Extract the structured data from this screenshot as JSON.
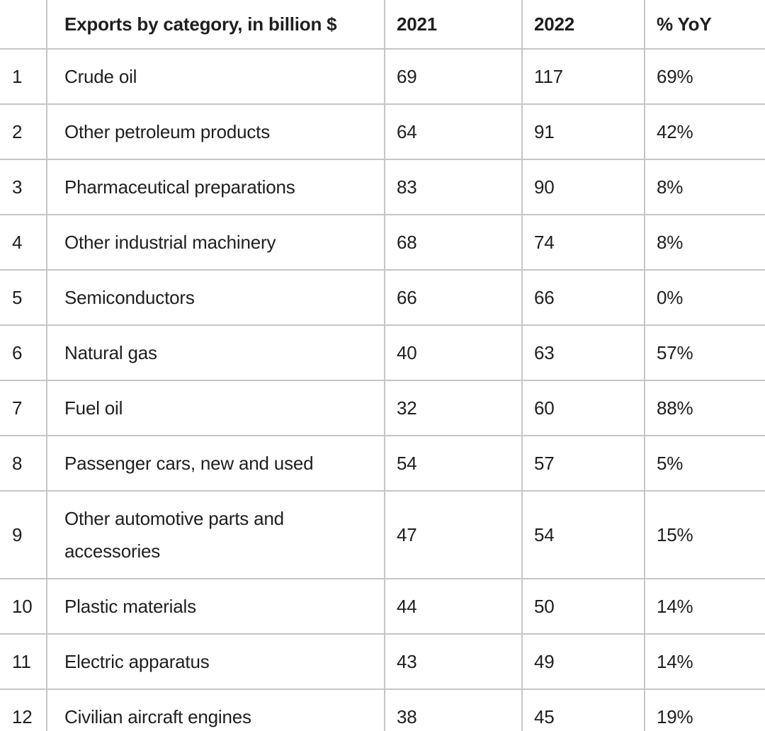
{
  "colors": {
    "background": "#ffffff",
    "text": "#1f1f1f",
    "border": "#c6c6c6"
  },
  "table": {
    "header": {
      "index": "",
      "category": "Exports by category, in billion $",
      "y2021": "2021",
      "y2022": "2022",
      "yoy": "% YoY"
    },
    "rows": [
      {
        "index": "1",
        "category": "Crude oil",
        "y2021": "69",
        "y2022": "117",
        "yoy": "69%"
      },
      {
        "index": "2",
        "category": "Other petroleum products",
        "y2021": "64",
        "y2022": "91",
        "yoy": "42%"
      },
      {
        "index": "3",
        "category": "Pharmaceutical preparations",
        "y2021": "83",
        "y2022": "90",
        "yoy": "8%"
      },
      {
        "index": "4",
        "category": "Other industrial machinery",
        "y2021": "68",
        "y2022": "74",
        "yoy": "8%"
      },
      {
        "index": "5",
        "category": "Semiconductors",
        "y2021": "66",
        "y2022": "66",
        "yoy": "0%"
      },
      {
        "index": "6",
        "category": "Natural gas",
        "y2021": "40",
        "y2022": "63",
        "yoy": "57%"
      },
      {
        "index": "7",
        "category": "Fuel oil",
        "y2021": "32",
        "y2022": "60",
        "yoy": "88%"
      },
      {
        "index": "8",
        "category": "Passenger cars, new and used",
        "y2021": "54",
        "y2022": "57",
        "yoy": "5%"
      },
      {
        "index": "9",
        "category": "Other automotive parts and accessories",
        "y2021": "47",
        "y2022": "54",
        "yoy": "15%"
      },
      {
        "index": "10",
        "category": "Plastic materials",
        "y2021": "44",
        "y2022": "50",
        "yoy": "14%"
      },
      {
        "index": "11",
        "category": "Electric apparatus",
        "y2021": "43",
        "y2022": "49",
        "yoy": "14%"
      },
      {
        "index": "12",
        "category": "Civilian aircraft engines",
        "y2021": "38",
        "y2022": "45",
        "yoy": "19%"
      }
    ]
  },
  "chart_data": {
    "type": "table",
    "title": "Exports by category, in billion $",
    "columns": [
      "",
      "Exports by category, in billion $",
      "2021",
      "2022",
      "% YoY"
    ],
    "categories": [
      "Crude oil",
      "Other petroleum products",
      "Pharmaceutical preparations",
      "Other industrial machinery",
      "Semiconductors",
      "Natural gas",
      "Fuel oil",
      "Passenger cars, new and used",
      "Other automotive parts and accessories",
      "Plastic materials",
      "Electric apparatus",
      "Civilian aircraft engines"
    ],
    "series": [
      {
        "name": "2021",
        "values": [
          69,
          64,
          83,
          68,
          66,
          40,
          32,
          54,
          47,
          44,
          43,
          38
        ]
      },
      {
        "name": "2022",
        "values": [
          117,
          91,
          90,
          74,
          66,
          63,
          60,
          57,
          54,
          50,
          49,
          45
        ]
      },
      {
        "name": "% YoY",
        "values": [
          "69%",
          "42%",
          "8%",
          "8%",
          "0%",
          "57%",
          "88%",
          "5%",
          "15%",
          "14%",
          "14%",
          "19%"
        ]
      }
    ]
  }
}
